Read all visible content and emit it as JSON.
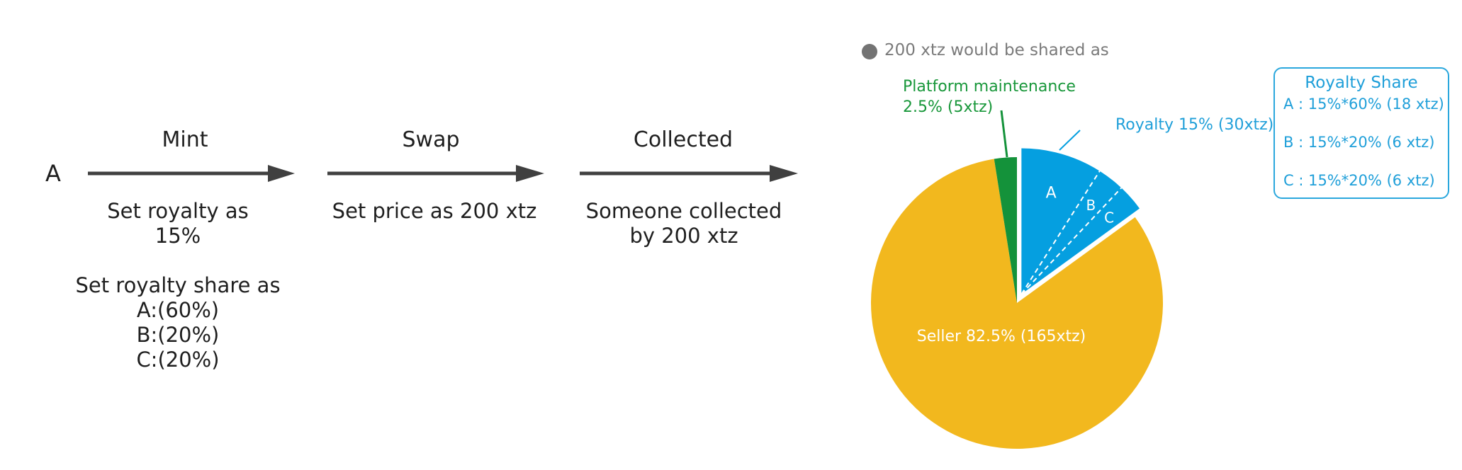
{
  "flow": {
    "actor": "A",
    "steps": [
      {
        "label": "Mint",
        "details": [
          "Set royalty as",
          "15%",
          "",
          "Set royalty share as",
          "A:(60%)",
          "B:(20%)",
          "C:(20%)"
        ]
      },
      {
        "label": "Swap",
        "details": [
          "Set price as 200 xtz"
        ]
      },
      {
        "label": "Collected",
        "details": [
          "Someone collected",
          "by 200 xtz"
        ]
      }
    ]
  },
  "legend": {
    "text": "200 xtz would be shared as",
    "color": "#737373"
  },
  "chart_data": {
    "type": "pie",
    "total": 200,
    "unit": "xtz",
    "slices": [
      {
        "name": "Royalty",
        "percent": 15,
        "value": 30,
        "color": "#059fe0",
        "exploded": true,
        "label": "Royalty 15% (30xtz)",
        "sub_slices": [
          {
            "name": "A",
            "share_percent": 60,
            "value": 18
          },
          {
            "name": "B",
            "share_percent": 20,
            "value": 6
          },
          {
            "name": "C",
            "share_percent": 20,
            "value": 6
          }
        ]
      },
      {
        "name": "Seller",
        "percent": 82.5,
        "value": 165,
        "color": "#f2b81e",
        "label": "Seller 82.5% (165xtz)"
      },
      {
        "name": "Platform maintenance",
        "percent": 2.5,
        "value": 5,
        "color": "#14923a",
        "label_lines": [
          "Platform maintenance",
          "2.5% (5xtz)"
        ]
      }
    ]
  },
  "royalty_share_box": {
    "title": "Royalty Share",
    "lines": [
      "A : 15%*60% (18 xtz)",
      "B : 15%*20% (6 xtz)",
      "C : 15%*20% (6 xtz)"
    ]
  },
  "colors": {
    "royalty": "#059fe0",
    "seller": "#f2b81e",
    "platform": "#14923a",
    "arrow": "#404040"
  }
}
